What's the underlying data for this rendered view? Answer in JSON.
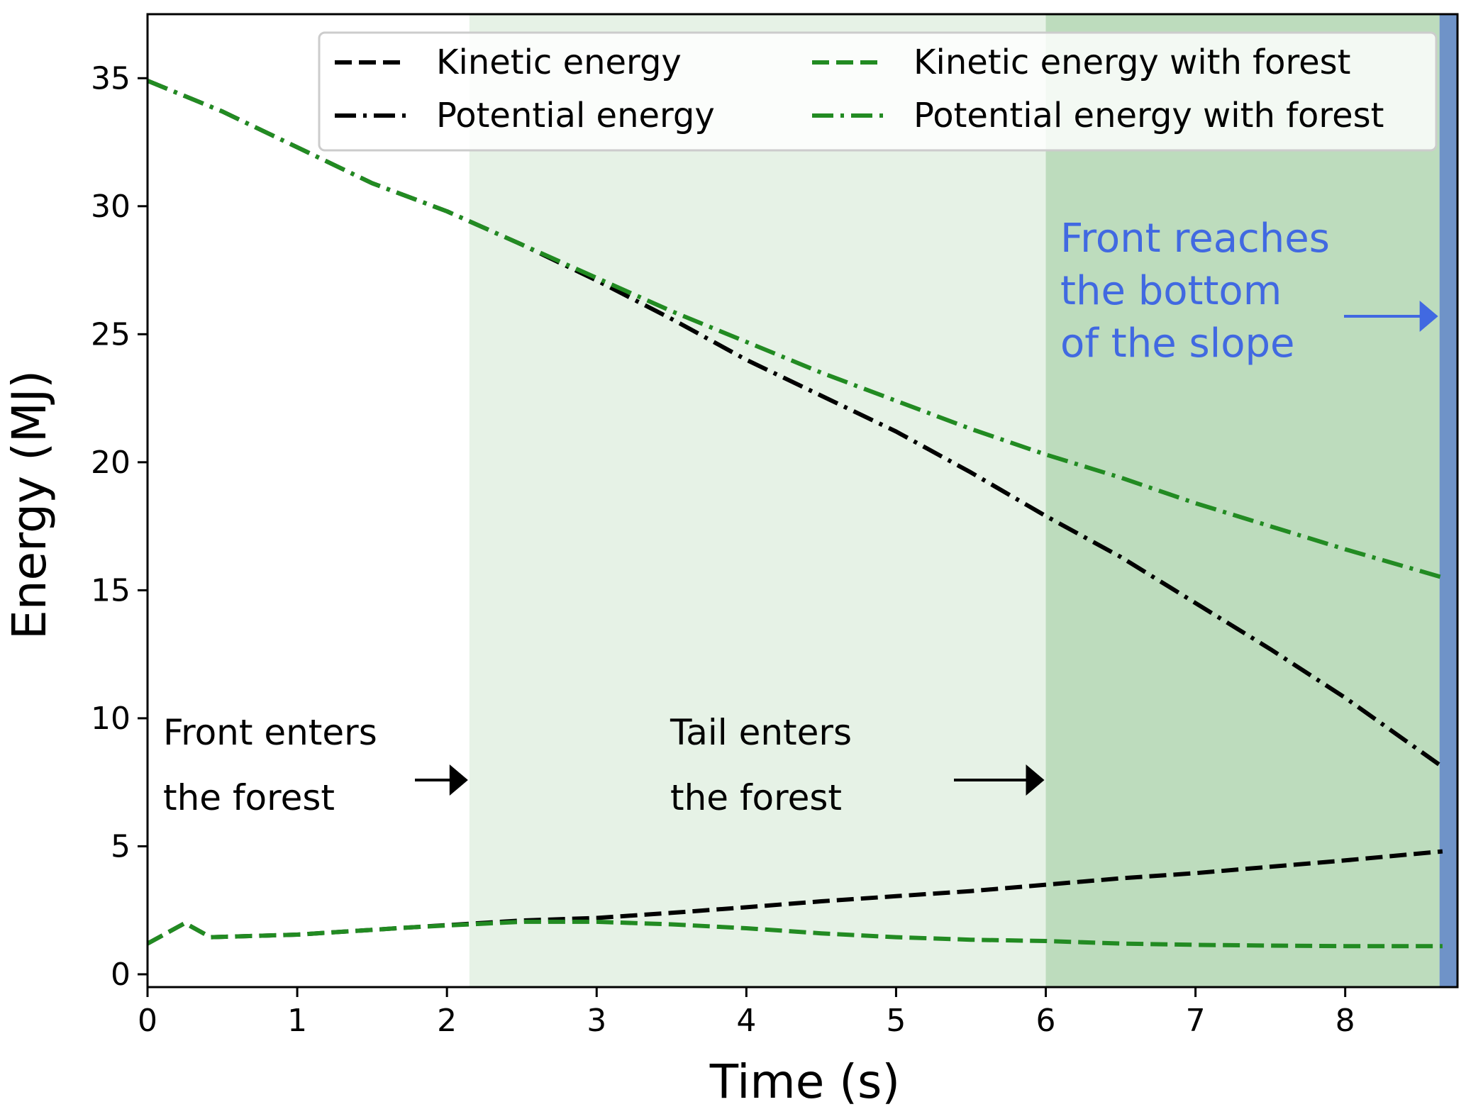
{
  "chart_data": {
    "type": "line",
    "xlabel": "Time (s)",
    "ylabel": "Energy (MJ)",
    "xlim": [
      0,
      8.75
    ],
    "ylim": [
      -0.5,
      37.5
    ],
    "xticks": [
      0,
      1,
      2,
      3,
      4,
      5,
      6,
      7,
      8
    ],
    "yticks": [
      0,
      5,
      10,
      15,
      20,
      25,
      30,
      35
    ],
    "grid": false,
    "legend_position": "top-right",
    "regions": [
      {
        "name": "front-in-forest",
        "x0": 2.15,
        "x1": 6.0,
        "color": "#e6f2e6"
      },
      {
        "name": "tail-in-forest",
        "x0": 6.0,
        "x1": 8.63,
        "color": "#bddcbd"
      },
      {
        "name": "front-at-bottom",
        "x0": 8.63,
        "x1": 8.75,
        "color": "#6f93c8"
      }
    ],
    "series": [
      {
        "name": "Kinetic energy",
        "color": "#000000",
        "dash": "dashed",
        "x": [
          0,
          0.25,
          0.42,
          1.0,
          1.8,
          2.5,
          3.0,
          3.5,
          4.0,
          4.5,
          5.0,
          5.5,
          6.0,
          6.5,
          7.0,
          7.5,
          8.0,
          8.65
        ],
        "y": [
          1.2,
          2.0,
          1.45,
          1.55,
          1.85,
          2.1,
          2.2,
          2.4,
          2.62,
          2.85,
          3.05,
          3.25,
          3.5,
          3.75,
          3.95,
          4.2,
          4.45,
          4.8
        ]
      },
      {
        "name": "Potential energy",
        "color": "#000000",
        "dash": "dashdot",
        "x": [
          0,
          0.25,
          0.5,
          1.0,
          1.5,
          2.0,
          2.5,
          3.0,
          3.5,
          4.0,
          4.5,
          5.0,
          5.5,
          6.0,
          6.5,
          7.0,
          7.5,
          8.0,
          8.65
        ],
        "y": [
          34.9,
          34.3,
          33.7,
          32.3,
          30.9,
          29.8,
          28.5,
          27.1,
          25.6,
          24.0,
          22.6,
          21.2,
          19.6,
          17.9,
          16.3,
          14.5,
          12.7,
          10.8,
          8.1
        ]
      },
      {
        "name": "Kinetic energy with forest",
        "color": "#228b22",
        "dash": "dashed",
        "x": [
          0,
          0.25,
          0.42,
          1.0,
          1.8,
          2.5,
          3.0,
          3.5,
          4.0,
          4.5,
          5.0,
          5.5,
          6.0,
          6.5,
          7.0,
          7.5,
          8.0,
          8.65
        ],
        "y": [
          1.2,
          2.0,
          1.45,
          1.55,
          1.85,
          2.05,
          2.05,
          1.95,
          1.8,
          1.6,
          1.45,
          1.35,
          1.3,
          1.2,
          1.15,
          1.12,
          1.1,
          1.1
        ]
      },
      {
        "name": "Potential energy with forest",
        "color": "#228b22",
        "dash": "dashdot",
        "x": [
          0,
          0.25,
          0.5,
          1.0,
          1.5,
          2.0,
          2.5,
          3.0,
          3.5,
          4.0,
          4.5,
          5.0,
          5.5,
          6.0,
          6.5,
          7.0,
          7.5,
          8.0,
          8.65
        ],
        "y": [
          34.9,
          34.3,
          33.7,
          32.3,
          30.9,
          29.8,
          28.5,
          27.2,
          25.9,
          24.7,
          23.5,
          22.4,
          21.3,
          20.3,
          19.4,
          18.4,
          17.5,
          16.6,
          15.5
        ]
      }
    ],
    "annotations": [
      {
        "name": "front-enters",
        "lines": [
          "Front enters",
          "the forest"
        ],
        "color": "#000000",
        "arrow_to_x": 2.15
      },
      {
        "name": "tail-enters",
        "lines": [
          "Tail enters",
          "the forest"
        ],
        "color": "#000000",
        "arrow_to_x": 6.0
      },
      {
        "name": "front-reaches-bottom",
        "lines": [
          "Front reaches",
          "the bottom",
          "of the slope"
        ],
        "color": "#4169e1",
        "arrow_to_x": 8.63
      }
    ]
  }
}
